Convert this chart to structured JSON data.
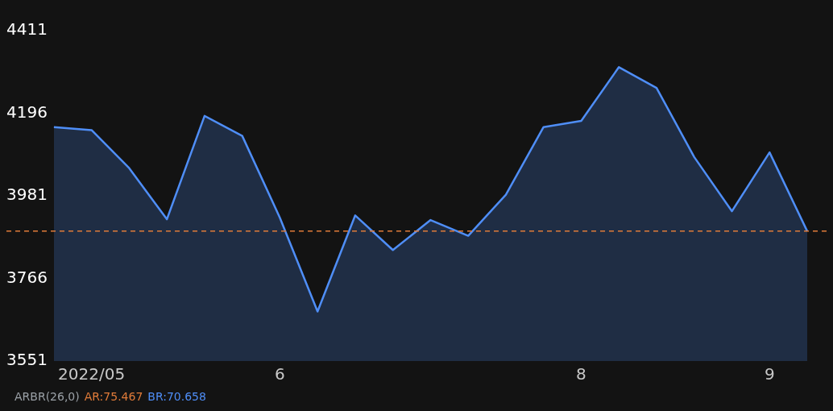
{
  "chart_data": {
    "type": "area",
    "categories": [
      null,
      "2022/05",
      null,
      null,
      null,
      null,
      "6",
      null,
      null,
      null,
      null,
      null,
      null,
      null,
      "8",
      null,
      null,
      null,
      null,
      "9",
      null
    ],
    "series": [
      {
        "color": "#4f8ef7",
        "values": [
          4160,
          4152,
          4053,
          3920,
          4189,
          4137,
          3924,
          3680,
          3930,
          3840,
          3918,
          3877,
          3984,
          4160,
          4176,
          4316,
          4262,
          4082,
          3941,
          4094,
          3889
        ]
      }
    ],
    "ylim": [
      3551,
      4411
    ],
    "yticks": [
      3551,
      3766,
      3981,
      4196,
      4411
    ],
    "legend": false,
    "ref_lines": [
      {
        "axis": "y",
        "value": 3889,
        "color": "#e07b39",
        "line_style": "dashed"
      }
    ],
    "annotations": [
      "ARBR(26,0)",
      "AR:75.467",
      "BR:70.658"
    ]
  }
}
